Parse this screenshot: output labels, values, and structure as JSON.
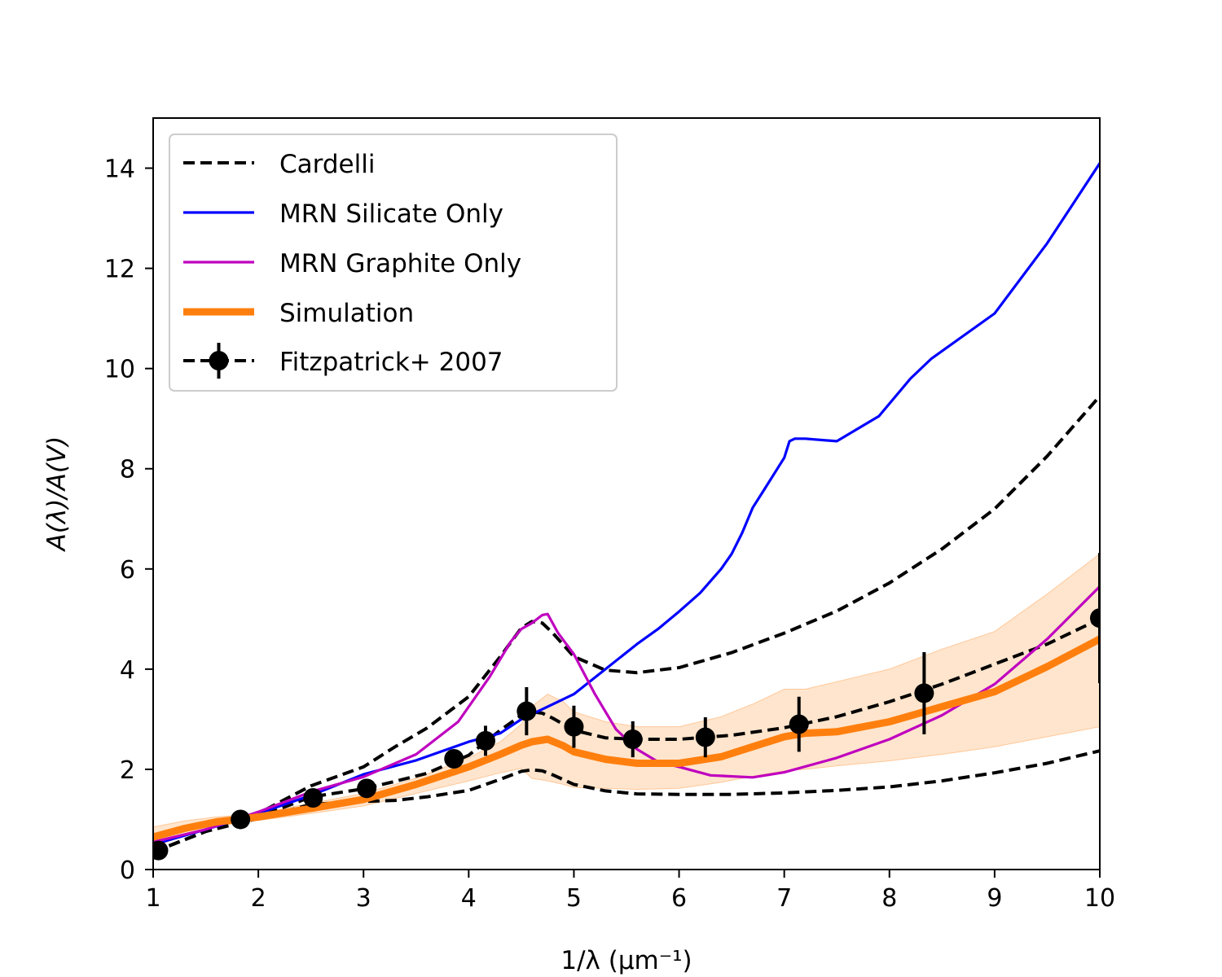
{
  "chart_data": {
    "type": "line",
    "xlabel": "1/λ (μm⁻¹)",
    "ylabel": "A(λ)/A(V)",
    "xlim": [
      1,
      10
    ],
    "ylim": [
      0,
      15
    ],
    "x_ticks": [
      "1",
      "2",
      "3",
      "4",
      "5",
      "6",
      "7",
      "8",
      "9",
      "10"
    ],
    "y_ticks": [
      "0",
      "2",
      "4",
      "6",
      "8",
      "10",
      "12",
      "14"
    ],
    "grid": false,
    "legend_position": "top-left",
    "colors": {
      "cardelli": "#000000",
      "silicate": "#0000ff",
      "graphite": "#bf00bf",
      "simulation": "#ff7f0e",
      "band": "#ffdcbc",
      "fitzpatrick": "#000000"
    },
    "legend": [
      {
        "label": "Cardelli",
        "style": "dashed-black"
      },
      {
        "label": "MRN Silicate Only",
        "style": "solid-blue"
      },
      {
        "label": "MRN Graphite Only",
        "style": "solid-magenta"
      },
      {
        "label": "Simulation",
        "style": "thick-orange"
      },
      {
        "label": "Fitzpatrick+ 2007",
        "style": "dashed-errorbar-marker"
      }
    ],
    "series": [
      {
        "name": "Cardelli",
        "kind": "cardelli",
        "curves": [
          {
            "x": [
              1.0,
              1.5,
              2.0,
              2.5,
              3.0,
              3.3,
              3.6,
              4.0,
              4.3,
              4.5,
              4.6,
              4.7,
              4.8,
              5.0,
              5.3,
              5.6,
              6.0,
              6.5,
              7.0,
              7.5,
              8.0,
              8.5,
              9.0,
              9.5,
              10.0
            ],
            "y": [
              0.35,
              0.76,
              1.12,
              1.67,
              2.05,
              2.45,
              2.82,
              3.45,
              4.25,
              4.82,
              4.95,
              4.92,
              4.72,
              4.25,
              3.98,
              3.93,
              4.03,
              4.33,
              4.72,
              5.16,
              5.72,
              6.4,
              7.2,
              8.25,
              9.45
            ]
          },
          {
            "x": [
              1.0,
              1.5,
              2.0,
              2.5,
              3.0,
              3.3,
              3.6,
              4.0,
              4.3,
              4.5,
              4.6,
              4.7,
              4.8,
              5.0,
              5.3,
              5.6,
              6.0,
              6.5,
              7.0,
              7.5,
              8.0,
              8.5,
              9.0,
              9.5,
              10.0
            ],
            "y": [
              0.35,
              0.76,
              1.05,
              1.45,
              1.61,
              1.76,
              1.92,
              2.28,
              2.78,
              3.08,
              3.15,
              3.12,
              3.02,
              2.78,
              2.63,
              2.6,
              2.6,
              2.68,
              2.83,
              3.05,
              3.35,
              3.7,
              4.1,
              4.5,
              5.0
            ]
          },
          {
            "x": [
              1.0,
              1.5,
              2.0,
              2.5,
              3.0,
              3.3,
              3.6,
              4.0,
              4.3,
              4.5,
              4.6,
              4.7,
              4.8,
              5.0,
              5.3,
              5.6,
              6.0,
              6.5,
              7.0,
              7.5,
              8.0,
              8.5,
              9.0,
              9.5,
              10.0
            ],
            "y": [
              0.35,
              0.76,
              1.02,
              1.3,
              1.36,
              1.38,
              1.45,
              1.58,
              1.8,
              1.96,
              1.99,
              1.97,
              1.89,
              1.7,
              1.57,
              1.51,
              1.5,
              1.5,
              1.53,
              1.58,
              1.65,
              1.77,
              1.93,
              2.12,
              2.37
            ]
          }
        ]
      },
      {
        "name": "MRN Silicate Only",
        "kind": "silicate",
        "x": [
          1.0,
          1.5,
          2.0,
          2.5,
          3.0,
          3.5,
          4.0,
          4.3,
          4.5,
          4.8,
          5.0,
          5.3,
          5.6,
          5.8,
          6.0,
          6.2,
          6.4,
          6.5,
          6.6,
          6.7,
          6.8,
          7.0,
          7.05,
          7.1,
          7.2,
          7.5,
          7.9,
          8.2,
          8.4,
          9.0,
          9.5,
          10.0
        ],
        "y": [
          0.5,
          0.8,
          1.12,
          1.48,
          1.9,
          2.18,
          2.55,
          2.72,
          3.0,
          3.3,
          3.5,
          4.0,
          4.5,
          4.8,
          5.15,
          5.52,
          6.0,
          6.3,
          6.72,
          7.22,
          7.55,
          8.22,
          8.55,
          8.6,
          8.6,
          8.55,
          9.05,
          9.8,
          10.2,
          11.1,
          12.5,
          14.1
        ]
      },
      {
        "name": "MRN Graphite Only",
        "kind": "graphite",
        "x": [
          1.0,
          1.5,
          2.0,
          2.5,
          3.0,
          3.5,
          3.9,
          4.2,
          4.4,
          4.5,
          4.6,
          4.7,
          4.75,
          4.85,
          5.0,
          5.2,
          5.4,
          5.6,
          5.8,
          6.0,
          6.3,
          6.7,
          7.0,
          7.5,
          8.0,
          8.5,
          9.0,
          9.5,
          10.0
        ],
        "y": [
          0.55,
          0.8,
          1.15,
          1.55,
          1.85,
          2.3,
          2.95,
          3.85,
          4.55,
          4.8,
          4.92,
          5.08,
          5.1,
          4.72,
          4.3,
          3.5,
          2.8,
          2.4,
          2.15,
          2.05,
          1.88,
          1.84,
          1.94,
          2.23,
          2.6,
          3.08,
          3.7,
          4.6,
          5.65
        ]
      },
      {
        "name": "Simulation",
        "kind": "simulation",
        "x": [
          1.0,
          1.3,
          1.6,
          1.8,
          2.0,
          2.5,
          3.0,
          3.5,
          4.0,
          4.3,
          4.5,
          4.6,
          4.75,
          4.9,
          5.0,
          5.3,
          5.6,
          6.0,
          6.4,
          6.7,
          7.0,
          7.2,
          7.5,
          8.0,
          8.5,
          9.0,
          9.5,
          10.0
        ],
        "y": [
          0.65,
          0.82,
          0.95,
          1.0,
          1.05,
          1.22,
          1.4,
          1.7,
          2.05,
          2.3,
          2.48,
          2.55,
          2.6,
          2.47,
          2.35,
          2.2,
          2.12,
          2.12,
          2.25,
          2.45,
          2.65,
          2.72,
          2.75,
          2.95,
          3.25,
          3.55,
          4.05,
          4.6
        ],
        "band_upper": [
          0.85,
          0.97,
          1.05,
          1.08,
          1.12,
          1.32,
          1.52,
          1.82,
          2.23,
          2.55,
          2.9,
          3.25,
          3.5,
          3.35,
          3.15,
          2.95,
          2.85,
          2.85,
          3.05,
          3.3,
          3.6,
          3.6,
          3.75,
          4.0,
          4.4,
          4.75,
          5.5,
          6.3
        ],
        "band_lower": [
          0.45,
          0.68,
          0.86,
          0.93,
          0.98,
          1.12,
          1.27,
          1.52,
          1.77,
          1.93,
          2.02,
          1.82,
          1.77,
          1.7,
          1.64,
          1.62,
          1.6,
          1.62,
          1.74,
          1.86,
          1.97,
          2.0,
          2.07,
          2.17,
          2.3,
          2.45,
          2.65,
          2.85
        ]
      },
      {
        "name": "Fitzpatrick+ 2007",
        "kind": "fitzpatrick",
        "x": [
          1.05,
          1.83,
          2.52,
          3.03,
          3.86,
          4.16,
          4.55,
          5.0,
          5.56,
          6.25,
          7.14,
          8.33,
          10.0
        ],
        "y": [
          0.38,
          1.0,
          1.43,
          1.62,
          2.21,
          2.57,
          3.16,
          2.85,
          2.6,
          2.64,
          2.9,
          3.52,
          5.02
        ],
        "yerr": [
          0.05,
          0.05,
          0.1,
          0.12,
          0.15,
          0.3,
          0.48,
          0.42,
          0.36,
          0.4,
          0.55,
          0.82,
          1.3
        ]
      }
    ]
  }
}
